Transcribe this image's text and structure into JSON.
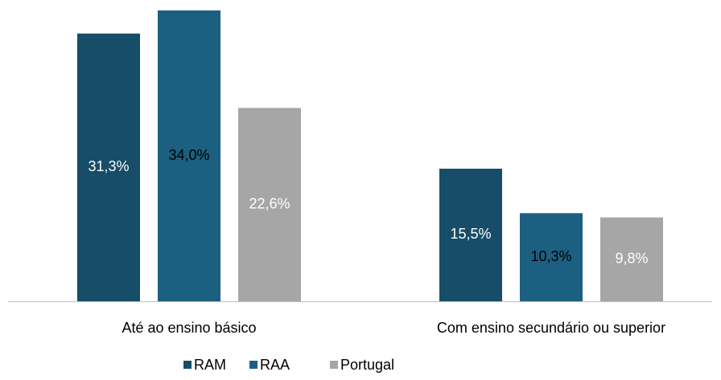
{
  "chart_data": {
    "type": "bar",
    "categories": [
      "Até ao ensino básico",
      "Com ensino secundário ou superior"
    ],
    "series": [
      {
        "name": "RAM",
        "color": "#174d68",
        "label_color": "#ffffff",
        "values": [
          31.3,
          15.5
        ],
        "value_labels": [
          "31,3%",
          "15,5%"
        ]
      },
      {
        "name": "RAA",
        "color": "#1b5f81",
        "label_color": "#000000",
        "values": [
          34.0,
          10.3
        ],
        "value_labels": [
          "34,0%",
          "10,3%"
        ]
      },
      {
        "name": "Portugal",
        "color": "#a6a6a6",
        "label_color": "#ffffff",
        "values": [
          22.6,
          9.8
        ],
        "value_labels": [
          "22,6%",
          "9,8%"
        ]
      }
    ],
    "legend": "bottom"
  }
}
